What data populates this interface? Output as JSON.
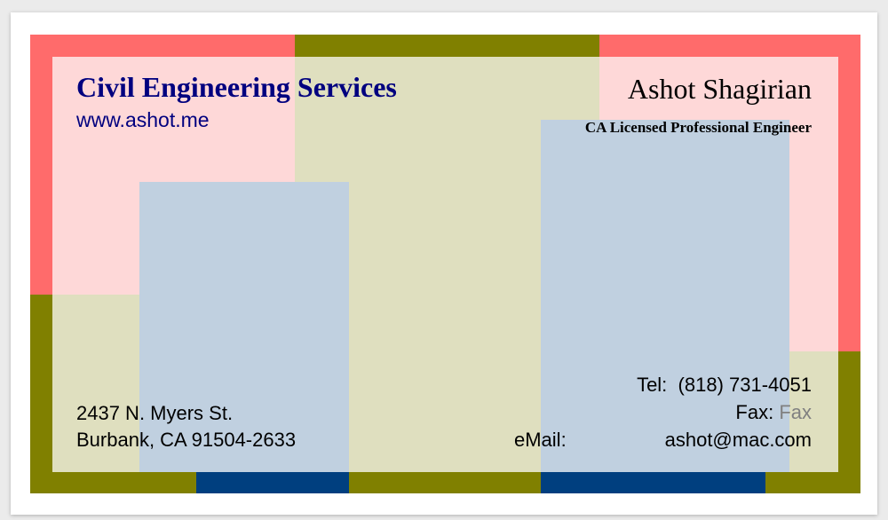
{
  "card": {
    "company_name": "Civil Engineering Services",
    "website": "www.ashot.me",
    "person_name": "Ashot Shagirian",
    "person_title": "CA Licensed Professional Engineer",
    "address": {
      "line1": "2437 N. Myers St.",
      "line2": "Burbank, CA 91504-2633"
    },
    "contact": {
      "tel_label": "Tel:",
      "tel_value": "(818) 731-4051",
      "fax_label": "Fax:",
      "fax_value": "Fax",
      "email_label": "eMail:",
      "email_value": "ashot@mac.com"
    }
  },
  "colors": {
    "red_band": "#ff6b6b",
    "olive_band": "#808000",
    "navy_band": "#003f7f",
    "pink_panel": "#fed8d8",
    "khaki_panel": "#dfdfbf",
    "blue_panel": "#c0d0e0",
    "company_text": "#00007f",
    "fax_value_text": "#808080"
  }
}
